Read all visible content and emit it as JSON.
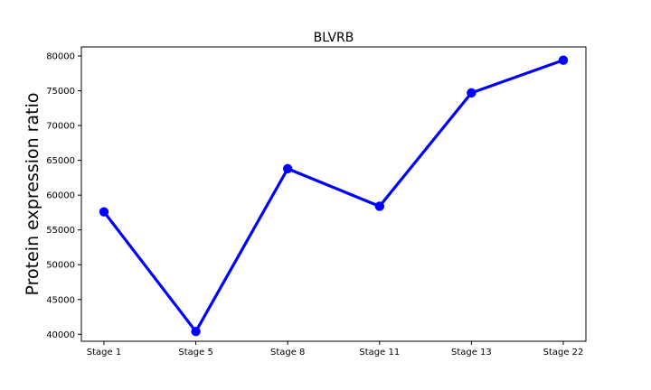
{
  "chart_data": {
    "type": "line",
    "title": "BLVRB",
    "xlabel": "",
    "ylabel": "Protein expression ratio",
    "categories": [
      "Stage 1",
      "Stage 5",
      "Stage 8",
      "Stage 11",
      "Stage 13",
      "Stage 22"
    ],
    "series": [
      {
        "values": [
          57600,
          40400,
          63800,
          58400,
          74700,
          79400
        ]
      }
    ],
    "ylim": [
      39000,
      81300
    ],
    "yticks": [
      40000,
      45000,
      50000,
      55000,
      60000,
      65000,
      70000,
      75000,
      80000
    ],
    "ytick_labels": [
      "40000",
      "45000",
      "50000",
      "55000",
      "60000",
      "65000",
      "70000",
      "75000",
      "80000"
    ],
    "grid": false,
    "legend": "none",
    "line_color": "#0000ff",
    "marker_color": "#0000ff"
  }
}
